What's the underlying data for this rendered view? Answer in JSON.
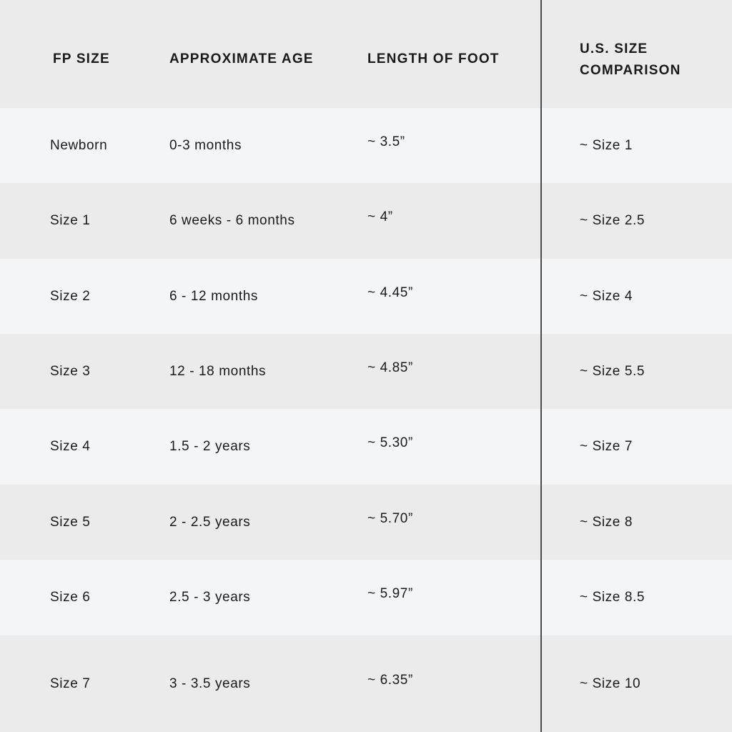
{
  "headers": [
    "FP SIZE",
    "APPROXIMATE AGE",
    "LENGTH OF FOOT",
    "U.S. SIZE COMPARISON"
  ],
  "rows": [
    [
      "Newborn",
      "0-3 months",
      "~ 3.5”",
      "~ Size 1"
    ],
    [
      "Size 1",
      "6 weeks - 6 months",
      "~ 4”",
      "~ Size 2.5"
    ],
    [
      "Size 2",
      "6 - 12 months",
      "~ 4.45”",
      "~ Size 4"
    ],
    [
      "Size 3",
      "12 - 18 months",
      "~ 4.85”",
      "~ Size 5.5"
    ],
    [
      "Size 4",
      "1.5 - 2 years",
      "~ 5.30”",
      "~ Size 7"
    ],
    [
      "Size 5",
      "2 - 2.5 years",
      "~ 5.70”",
      "~ Size 8"
    ],
    [
      "Size 6",
      "2.5 - 3 years",
      "~ 5.97”",
      "~ Size 8.5"
    ],
    [
      "Size 7",
      "3 - 3.5 years",
      "~ 6.35”",
      "~ Size 10"
    ]
  ],
  "colors": {
    "header_bg": "#ebebeb",
    "row_light": "#f4f5f7",
    "row_dark": "#ebebeb",
    "divider": "#4a4a4a"
  }
}
